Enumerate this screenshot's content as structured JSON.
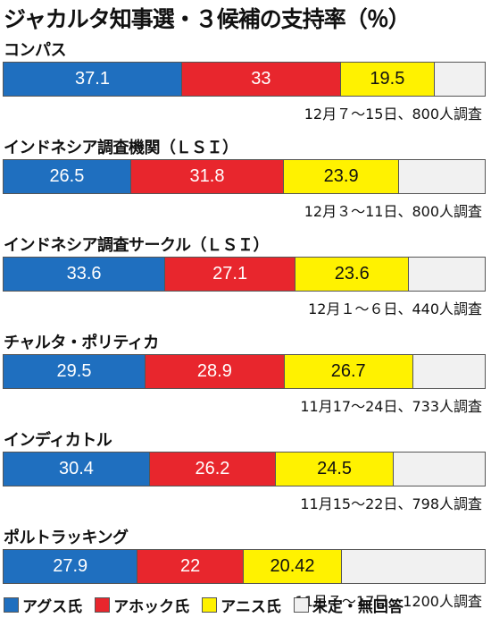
{
  "title": "ジャカルタ知事選・３候補の支持率（％）",
  "chart_data": {
    "type": "bar",
    "orientation": "horizontal-stacked-100",
    "series": [
      {
        "name": "アグス氏",
        "color": "#1f6fbf",
        "text_color": "#ffffff"
      },
      {
        "name": "アホック氏",
        "color": "#e8262d",
        "text_color": "#ffffff"
      },
      {
        "name": "アニス氏",
        "color": "#fff200",
        "text_color": "#111111"
      },
      {
        "name": "未定・無回答",
        "color": "#f1f1f1",
        "text_color": "#111111"
      }
    ],
    "polls": [
      {
        "name": "コンパス",
        "values": [
          "37.1",
          "33",
          "19.5"
        ],
        "note": "12月７～15日、800人調査"
      },
      {
        "name": "インドネシア調査機関（ＬＳＩ）",
        "values": [
          "26.5",
          "31.8",
          "23.9"
        ],
        "note": "12月３～11日、800人調査"
      },
      {
        "name": "インドネシア調査サークル（ＬＳＩ）",
        "values": [
          "33.6",
          "27.1",
          "23.6"
        ],
        "note": "12月１～６日、440人調査"
      },
      {
        "name": "チャルタ・ポリティカ",
        "values": [
          "29.5",
          "28.9",
          "26.7"
        ],
        "note": "11月17～24日、733人調査"
      },
      {
        "name": "インディカトル",
        "values": [
          "30.4",
          "26.2",
          "24.5"
        ],
        "note": "11月15～22日、798人調査"
      },
      {
        "name": "ポルトラッキング",
        "values": [
          "27.9",
          "22",
          "20.42"
        ],
        "note": "11月７～17日、1200人調査"
      }
    ]
  }
}
